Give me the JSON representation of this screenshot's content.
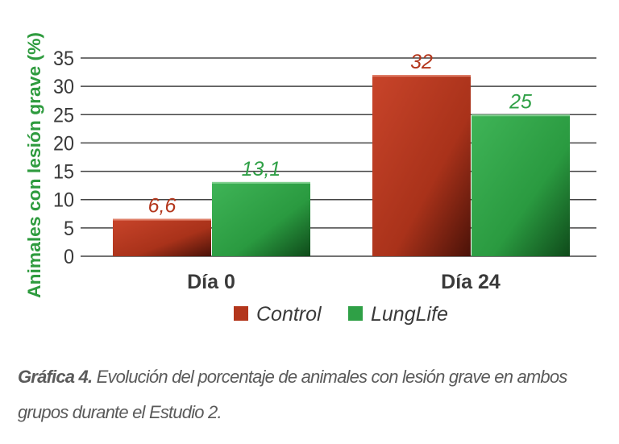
{
  "chart_data": {
    "type": "bar",
    "title": "",
    "xlabel": "",
    "ylabel": "Animales con lesión grave (%)",
    "ylim": [
      0,
      35
    ],
    "yticks": [
      0,
      5,
      10,
      15,
      20,
      25,
      30,
      35
    ],
    "grid": true,
    "categories": [
      "Día 0",
      "Día 24"
    ],
    "series": [
      {
        "name": "Control",
        "values": [
          6.6,
          32
        ],
        "labels": [
          "6,6",
          "32"
        ],
        "color": "#b3361c"
      },
      {
        "name": "LungLife",
        "values": [
          13.1,
          25
        ],
        "labels": [
          "13,1",
          "25"
        ],
        "color": "#2fa046"
      }
    ],
    "legend_position": "bottom"
  },
  "caption": {
    "label": "Gráfica 4.",
    "text": " Evolución del porcentaje de animales con lesión grave en ambos grupos durante el Estudio 2."
  },
  "colors": {
    "ylabel": "#2e9b3e",
    "text": "#3a3a3a"
  }
}
